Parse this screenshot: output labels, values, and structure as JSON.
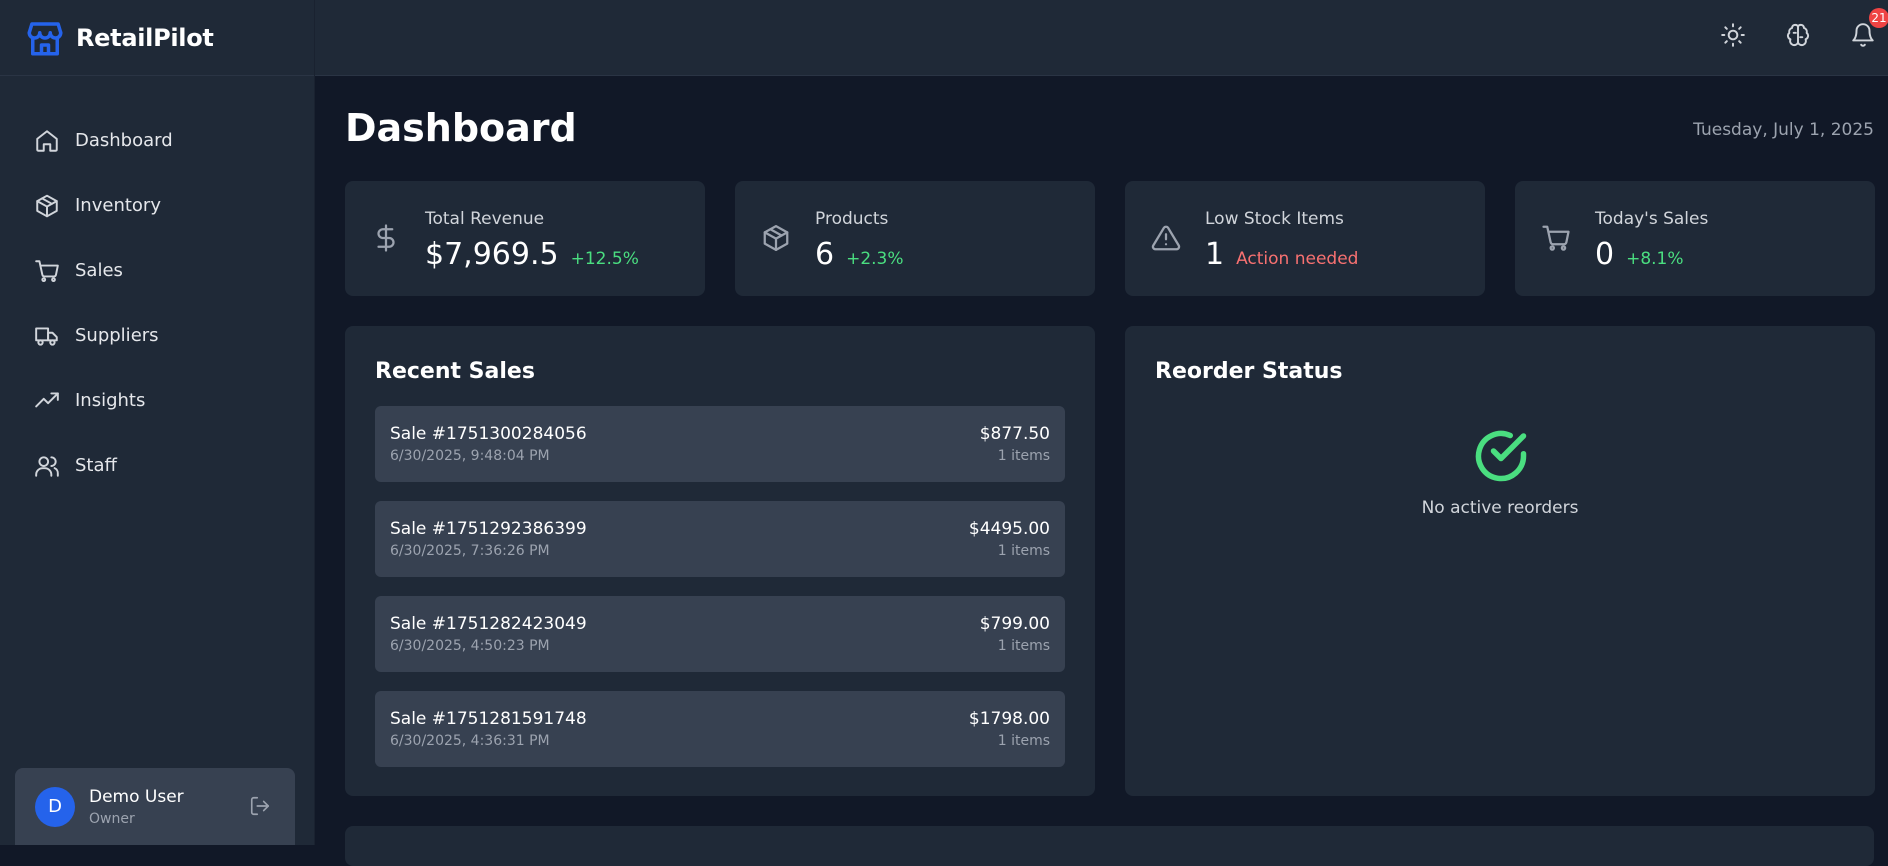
{
  "app": {
    "name": "RetailPilot"
  },
  "sidebar": {
    "items": [
      {
        "label": "Dashboard",
        "icon": "home-icon"
      },
      {
        "label": "Inventory",
        "icon": "box-icon"
      },
      {
        "label": "Sales",
        "icon": "cart-icon"
      },
      {
        "label": "Suppliers",
        "icon": "truck-icon"
      },
      {
        "label": "Insights",
        "icon": "trending-up-icon"
      },
      {
        "label": "Staff",
        "icon": "users-icon"
      }
    ],
    "user": {
      "initial": "D",
      "name": "Demo User",
      "role": "Owner"
    }
  },
  "topbar": {
    "notification_count": "21"
  },
  "page": {
    "title": "Dashboard",
    "date": "Tuesday, July 1, 2025"
  },
  "stats": [
    {
      "label": "Total Revenue",
      "value": "$7,969.5",
      "change": "+12.5%",
      "icon": "dollar-icon"
    },
    {
      "label": "Products",
      "value": "6",
      "change": "+2.3%",
      "icon": "box-icon"
    },
    {
      "label": "Low Stock Items",
      "value": "1",
      "change": "Action needed",
      "icon": "alert-triangle-icon"
    },
    {
      "label": "Today's Sales",
      "value": "0",
      "change": "+8.1%",
      "icon": "cart-icon"
    }
  ],
  "recent_sales": {
    "title": "Recent Sales",
    "rows": [
      {
        "id": "Sale #1751300284056",
        "date": "6/30/2025, 9:48:04 PM",
        "total": "$877.50",
        "items": "1 items"
      },
      {
        "id": "Sale #1751292386399",
        "date": "6/30/2025, 7:36:26 PM",
        "total": "$4495.00",
        "items": "1 items"
      },
      {
        "id": "Sale #1751282423049",
        "date": "6/30/2025, 4:50:23 PM",
        "total": "$799.00",
        "items": "1 items"
      },
      {
        "id": "Sale #1751281591748",
        "date": "6/30/2025, 4:36:31 PM",
        "total": "$1798.00",
        "items": "1 items"
      }
    ]
  },
  "reorder_status": {
    "title": "Reorder Status",
    "empty_text": "No active reorders"
  },
  "colors": {
    "accent": "#2563eb",
    "positive": "#4ade80",
    "negative": "#f87171",
    "background": "#111827",
    "card": "#1f2937"
  }
}
